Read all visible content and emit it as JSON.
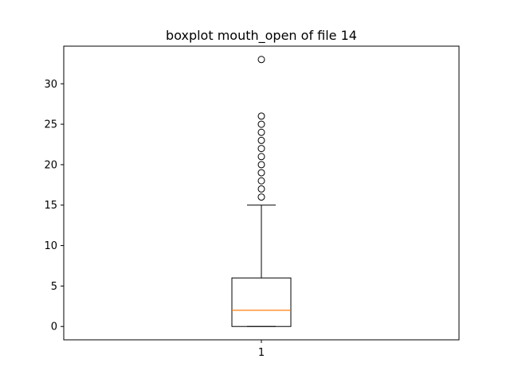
{
  "chart_data": {
    "type": "boxplot",
    "title": "boxplot mouth_open of file 14",
    "xlabel": "",
    "ylabel": "",
    "categories": [
      "1"
    ],
    "ylim": [
      -1.65,
      34.65
    ],
    "yticks": [
      "0",
      "5",
      "10",
      "15",
      "20",
      "25",
      "30"
    ],
    "grid": false,
    "boxes": [
      {
        "category": "1",
        "whisker_low": 0,
        "q1": 0,
        "median": 2,
        "q3": 6,
        "whisker_high": 15,
        "outliers": [
          16,
          17,
          18,
          19,
          20,
          21,
          22,
          23,
          24,
          25,
          26,
          33
        ]
      }
    ],
    "colors": {
      "box": "#000000",
      "median": "#ff7f0e",
      "outlier": "#000000"
    }
  }
}
